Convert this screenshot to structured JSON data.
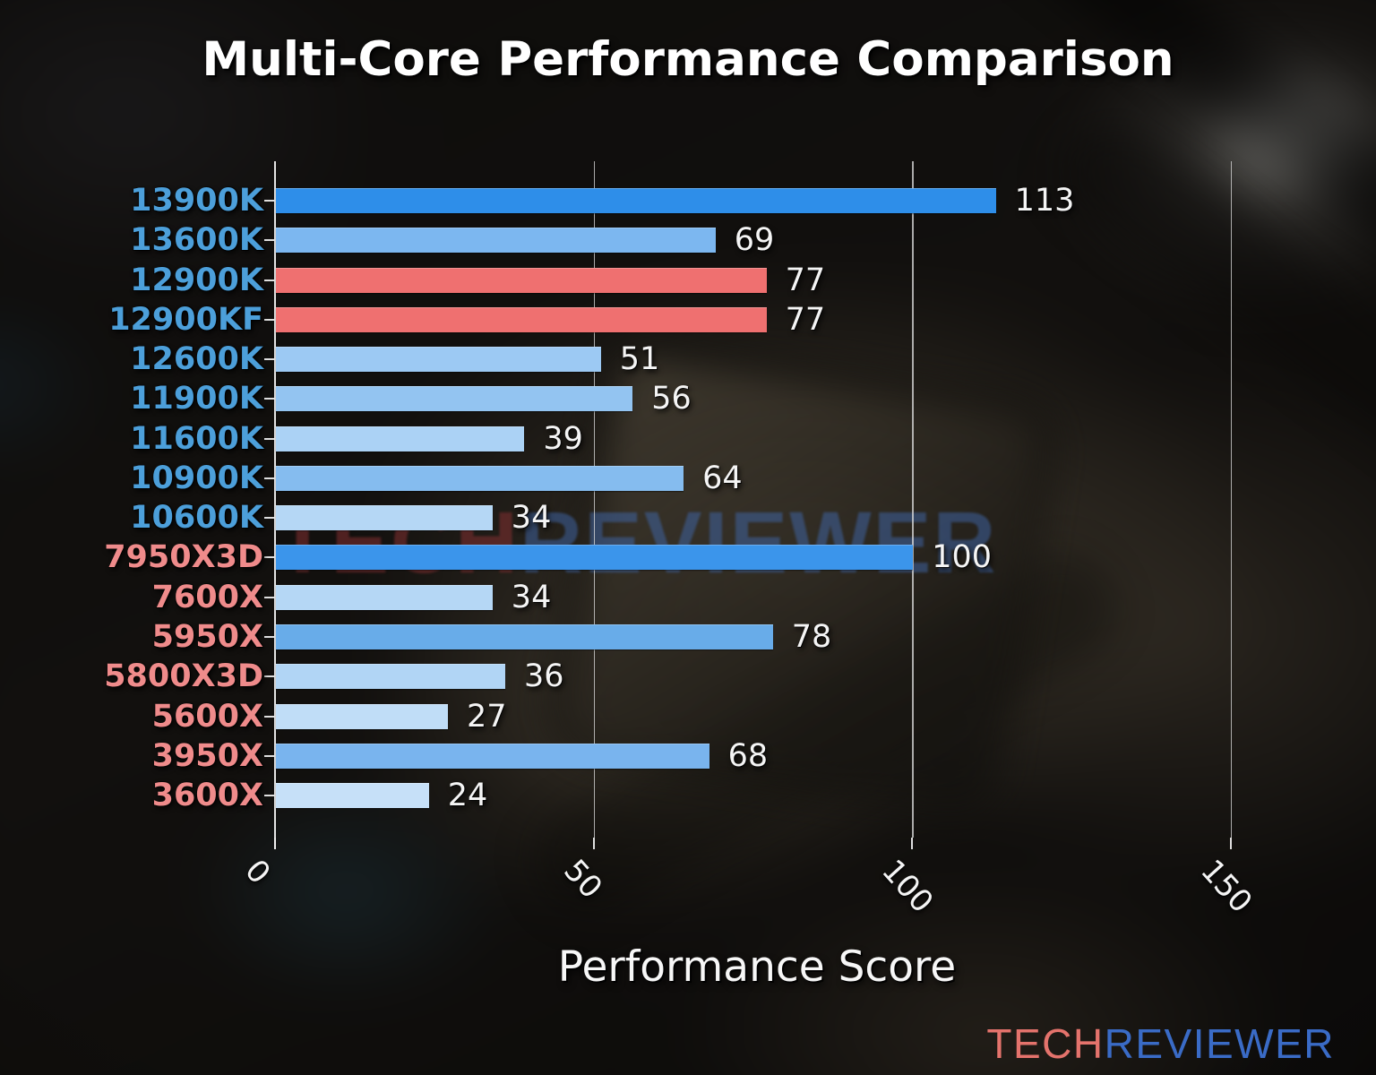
{
  "title": "Multi-Core Performance Comparison",
  "xlabel": "Performance Score",
  "watermark": {
    "part1": "TECH",
    "part2": "REVIEWER",
    "part1_color": "rgba(132,48,50,0.55)",
    "part2_color": "rgba(64,101,166,0.52)"
  },
  "logo": {
    "part1": "TECH",
    "part2": "REVIEWER",
    "part1_color": "#e4736c",
    "part2_color": "#3a6bc6"
  },
  "colors": {
    "intel_label": "#4c9fda",
    "amd_label": "#ef8b8b",
    "highlight_bar": "#ef7070",
    "value_label": "#f5f5f5",
    "gridline": "#dedede"
  },
  "chart_data": {
    "type": "bar",
    "orientation": "horizontal",
    "title": "Multi-Core Performance Comparison",
    "xlabel": "Performance Score",
    "ylabel": "",
    "xlim": [
      0,
      158
    ],
    "xticks": [
      0,
      50,
      100,
      150
    ],
    "grid": "vertical gridlines at 50, 100, 150",
    "legend": "none",
    "bars": [
      {
        "label": "13900K",
        "value": 113,
        "color": "#2e8ee9",
        "vendor": "intel"
      },
      {
        "label": "13600K",
        "value": 69,
        "color": "#7cb7f0",
        "vendor": "intel"
      },
      {
        "label": "12900K",
        "value": 77,
        "color": "#ef7070",
        "vendor": "intel",
        "highlight": true
      },
      {
        "label": "12900KF",
        "value": 77,
        "color": "#ef7070",
        "vendor": "intel",
        "highlight": true
      },
      {
        "label": "12600K",
        "value": 51,
        "color": "#9cc9f3",
        "vendor": "intel"
      },
      {
        "label": "11900K",
        "value": 56,
        "color": "#93c4f1",
        "vendor": "intel"
      },
      {
        "label": "11600K",
        "value": 39,
        "color": "#abd2f5",
        "vendor": "intel"
      },
      {
        "label": "10900K",
        "value": 64,
        "color": "#85bcef",
        "vendor": "intel"
      },
      {
        "label": "10600K",
        "value": 34,
        "color": "#b5d7f5",
        "vendor": "intel"
      },
      {
        "label": "7950X3D",
        "value": 100,
        "color": "#3b95eb",
        "vendor": "amd"
      },
      {
        "label": "7600X",
        "value": 34,
        "color": "#b5d7f5",
        "vendor": "amd"
      },
      {
        "label": "5950X",
        "value": 78,
        "color": "#68ace9",
        "vendor": "amd"
      },
      {
        "label": "5800X3D",
        "value": 36,
        "color": "#b1d5f5",
        "vendor": "amd"
      },
      {
        "label": "5600X",
        "value": 27,
        "color": "#c0ddf7",
        "vendor": "amd"
      },
      {
        "label": "3950X",
        "value": 68,
        "color": "#79b4ee",
        "vendor": "amd"
      },
      {
        "label": "3600X",
        "value": 24,
        "color": "#c6e0f8",
        "vendor": "amd"
      }
    ]
  }
}
